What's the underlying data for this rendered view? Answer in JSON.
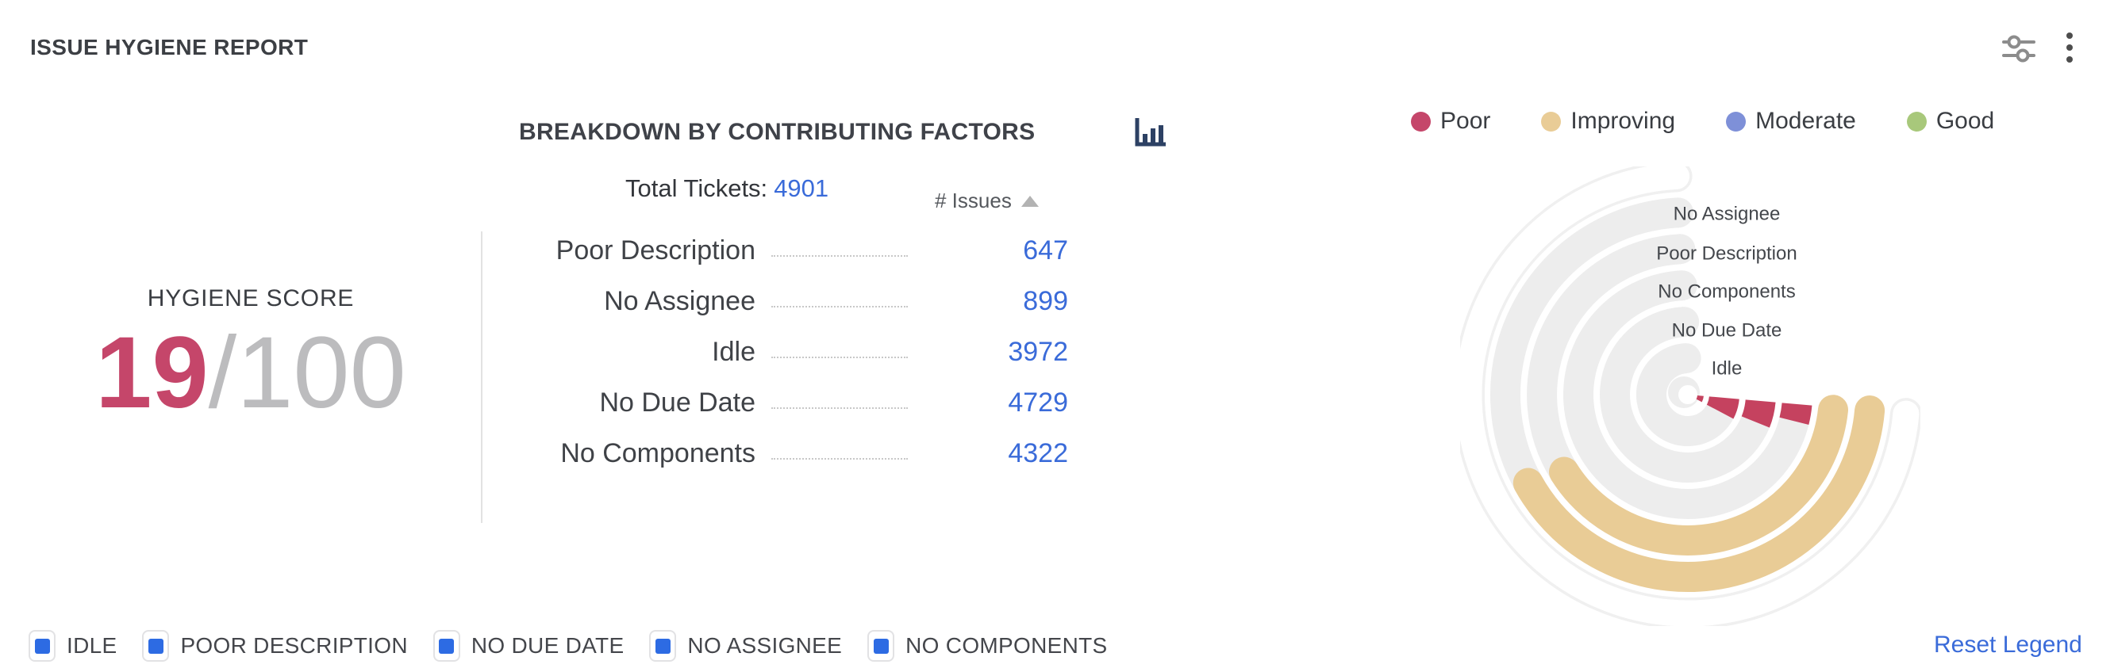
{
  "header": {
    "title": "ISSUE HYGIENE REPORT",
    "actions": {
      "settings_icon": "sliders-icon",
      "menu_icon": "kebab-menu-icon"
    }
  },
  "panel": {
    "heading": "BREAKDOWN BY CONTRIBUTING FACTORS",
    "total_tickets_label": "Total Tickets:",
    "total_tickets_value": "4901",
    "issues_column_header": "# Issues",
    "sort_direction": "ascending"
  },
  "status_legend": {
    "items": [
      {
        "label": "Poor",
        "color": "#c5466a"
      },
      {
        "label": "Improving",
        "color": "#e9cc96"
      },
      {
        "label": "Moderate",
        "color": "#7e90d8"
      },
      {
        "label": "Good",
        "color": "#a8c87b"
      }
    ]
  },
  "hygiene": {
    "label": "HYGIENE SCORE",
    "score": "19",
    "denominator": "/100",
    "score_color": "#c5466a"
  },
  "table": {
    "rows": [
      {
        "label": "Poor Description",
        "value": "647"
      },
      {
        "label": "No Assignee",
        "value": "899"
      },
      {
        "label": "Idle",
        "value": "3972"
      },
      {
        "label": "No Due Date",
        "value": "4729"
      },
      {
        "label": "No Components",
        "value": "4322"
      }
    ]
  },
  "chart_data": {
    "type": "radial_bar",
    "title": "BREAKDOWN BY CONTRIBUTING FACTORS",
    "total_tickets": 4901,
    "hygiene_score": 19,
    "hygiene_score_max": 100,
    "legend_position": "top-right",
    "categories": [
      "Poor Description",
      "No Assignee",
      "Idle",
      "No Due Date",
      "No Components"
    ],
    "values": [
      647,
      899,
      3972,
      4729,
      4322
    ],
    "rings": [
      {
        "label": "No Assignee",
        "issues": 899,
        "status": "Improving",
        "color": "#e9cc96",
        "radius": 230,
        "value_start_deg": 95,
        "value_end_deg": 241,
        "cap": "round"
      },
      {
        "label": "Poor Description",
        "issues": 647,
        "status": "Improving",
        "color": "#e9cc96",
        "radius": 184,
        "value_start_deg": 96,
        "value_end_deg": 238,
        "cap": "round"
      },
      {
        "label": "No Components",
        "issues": 4322,
        "status": "Poor",
        "color": "#c5425f",
        "radius": 138,
        "value_start_deg": 95,
        "value_end_deg": 104,
        "cap": "butt"
      },
      {
        "label": "No Due Date",
        "issues": 4729,
        "status": "Poor",
        "color": "#c5425f",
        "radius": 92,
        "value_start_deg": 95,
        "value_end_deg": 112,
        "cap": "butt"
      },
      {
        "label": "Idle",
        "issues": 3972,
        "status": "Poor",
        "color": "#c5425f",
        "radius": 46,
        "value_start_deg": 95,
        "value_end_deg": 118,
        "cap": "butt"
      }
    ],
    "empty_outer_ring": {
      "radius": 276,
      "start_deg": 95,
      "end_deg": 357,
      "outline_color": "#f0f0f0"
    },
    "track": {
      "color": "#ededed",
      "end_deg": 357,
      "width": 38
    }
  },
  "bottom_legend": {
    "items": [
      {
        "label": "IDLE",
        "checked": true
      },
      {
        "label": "POOR DESCRIPTION",
        "checked": true
      },
      {
        "label": "NO DUE DATE",
        "checked": true
      },
      {
        "label": "NO ASSIGNEE",
        "checked": true
      },
      {
        "label": "NO COMPONENTS",
        "checked": true
      }
    ],
    "checkbox_color": "#2d6be3",
    "reset_label": "Reset Legend"
  },
  "colors": {
    "link_blue": "#3a6bd9",
    "poor": "#c5425f",
    "improving": "#e9cc96",
    "moderate": "#7e90d8",
    "good": "#a8c87b",
    "track_gray": "#ededed",
    "text_dark": "#3f4247"
  }
}
